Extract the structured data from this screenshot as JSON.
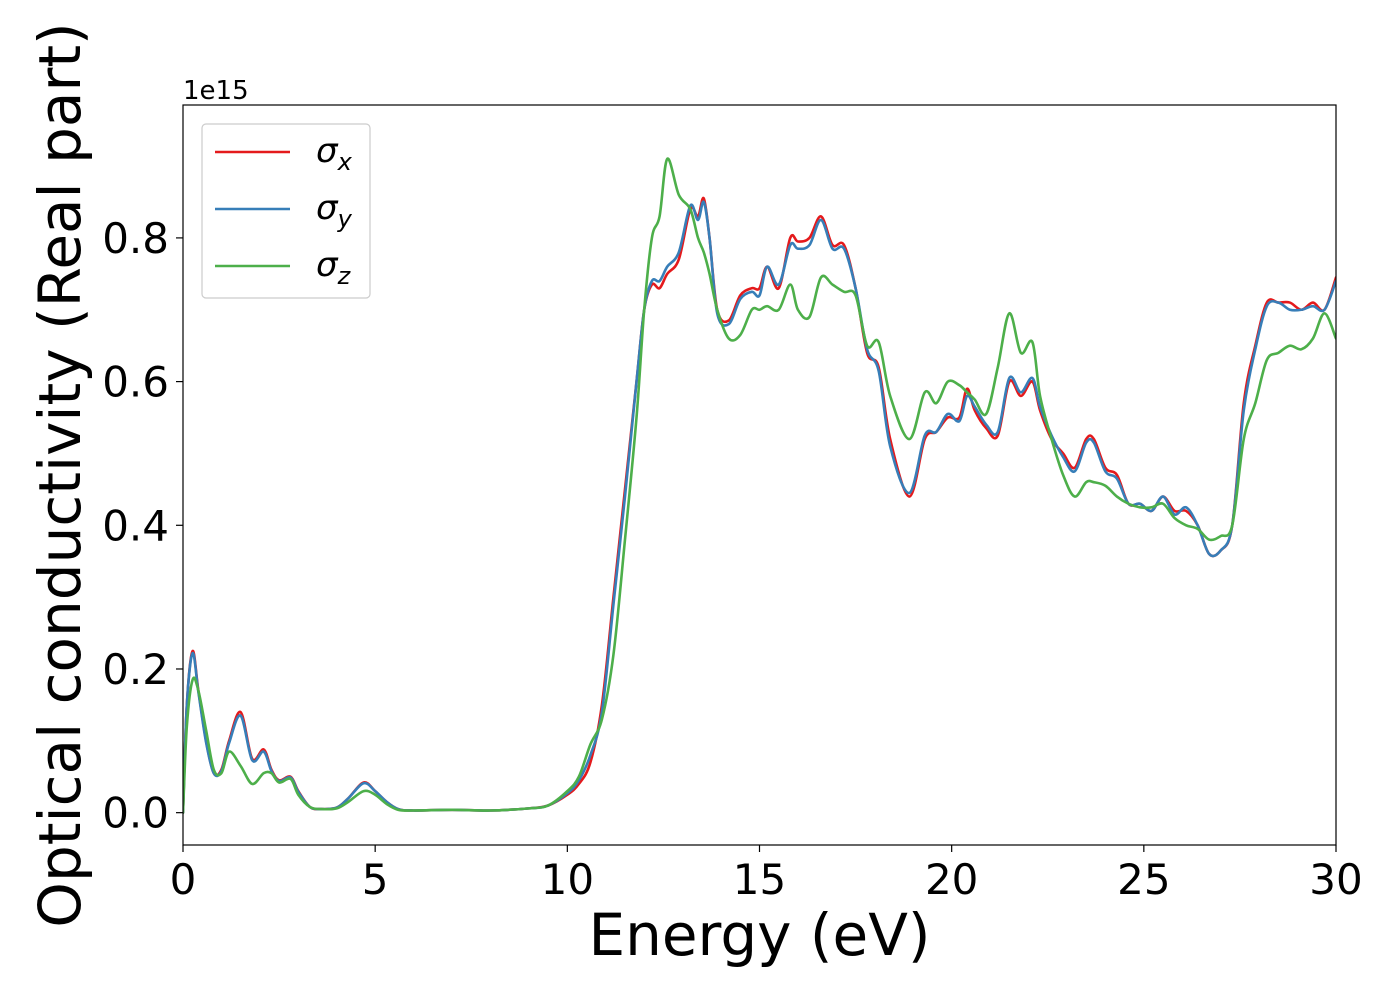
{
  "chart_data": {
    "type": "line",
    "title": "",
    "xlabel": "Energy (eV)",
    "ylabel": "Optical conductivity (Real part)",
    "y_offset_label": "1e15",
    "xlim": [
      0,
      30
    ],
    "ylim": [
      -0.045,
      0.985
    ],
    "x_ticks": [
      0,
      5,
      10,
      15,
      20,
      25,
      30
    ],
    "x_tick_labels": [
      "0",
      "5",
      "10",
      "15",
      "20",
      "25",
      "30"
    ],
    "y_ticks": [
      0.0,
      0.2,
      0.4,
      0.6,
      0.8
    ],
    "y_tick_labels": [
      "0.0",
      "0.2",
      "0.4",
      "0.6",
      "0.8"
    ],
    "grid": false,
    "legend_position": "top-left",
    "series": [
      {
        "name": "σx",
        "label_base": "σ",
        "label_sub": "x",
        "color": "#e41a1c",
        "x": [
          0,
          0.1,
          0.25,
          0.4,
          0.6,
          0.8,
          1.0,
          1.2,
          1.5,
          1.8,
          2.1,
          2.3,
          2.5,
          2.8,
          3.0,
          3.3,
          3.6,
          4.0,
          4.3,
          4.7,
          5.0,
          5.3,
          5.6,
          6.0,
          7.0,
          8.0,
          9.0,
          9.5,
          10.0,
          10.3,
          10.6,
          10.9,
          11.2,
          11.5,
          11.8,
          12.0,
          12.2,
          12.4,
          12.6,
          12.9,
          13.2,
          13.4,
          13.55,
          13.7,
          13.9,
          14.2,
          14.5,
          14.8,
          15.0,
          15.2,
          15.5,
          15.8,
          16.0,
          16.3,
          16.6,
          16.9,
          17.2,
          17.5,
          17.8,
          18.1,
          18.4,
          18.9,
          19.3,
          19.6,
          19.9,
          20.2,
          20.4,
          20.6,
          20.9,
          21.2,
          21.5,
          21.8,
          22.1,
          22.3,
          22.6,
          22.9,
          23.2,
          23.5,
          23.7,
          24.0,
          24.3,
          24.6,
          24.9,
          25.2,
          25.5,
          25.8,
          26.1,
          26.4,
          26.7,
          27.0,
          27.3,
          27.6,
          27.9,
          28.2,
          28.5,
          28.8,
          29.1,
          29.4,
          29.7,
          30.0
        ],
        "y": [
          0.0,
          0.15,
          0.225,
          0.17,
          0.1,
          0.055,
          0.06,
          0.1,
          0.14,
          0.075,
          0.088,
          0.06,
          0.045,
          0.05,
          0.03,
          0.008,
          0.005,
          0.007,
          0.02,
          0.042,
          0.03,
          0.015,
          0.005,
          0.003,
          0.004,
          0.003,
          0.006,
          0.01,
          0.025,
          0.04,
          0.07,
          0.15,
          0.3,
          0.45,
          0.6,
          0.7,
          0.735,
          0.73,
          0.75,
          0.77,
          0.84,
          0.83,
          0.855,
          0.8,
          0.7,
          0.685,
          0.72,
          0.73,
          0.73,
          0.76,
          0.73,
          0.8,
          0.795,
          0.8,
          0.83,
          0.79,
          0.79,
          0.73,
          0.64,
          0.62,
          0.52,
          0.44,
          0.52,
          0.53,
          0.55,
          0.55,
          0.59,
          0.56,
          0.535,
          0.525,
          0.6,
          0.58,
          0.6,
          0.56,
          0.52,
          0.5,
          0.48,
          0.52,
          0.52,
          0.48,
          0.47,
          0.43,
          0.43,
          0.42,
          0.44,
          0.42,
          0.42,
          0.4,
          0.36,
          0.365,
          0.4,
          0.57,
          0.65,
          0.71,
          0.71,
          0.71,
          0.7,
          0.71,
          0.7,
          0.745
        ]
      },
      {
        "name": "σy",
        "label_base": "σ",
        "label_sub": "y",
        "color": "#377eb8",
        "x": [
          0,
          0.1,
          0.25,
          0.4,
          0.6,
          0.8,
          1.0,
          1.2,
          1.5,
          1.8,
          2.1,
          2.3,
          2.5,
          2.8,
          3.0,
          3.3,
          3.6,
          4.0,
          4.3,
          4.7,
          5.0,
          5.3,
          5.6,
          6.0,
          7.0,
          8.0,
          9.0,
          9.5,
          10.0,
          10.3,
          10.6,
          10.9,
          11.2,
          11.5,
          11.8,
          12.0,
          12.2,
          12.4,
          12.6,
          12.9,
          13.2,
          13.4,
          13.55,
          13.7,
          13.9,
          14.2,
          14.5,
          14.8,
          15.0,
          15.2,
          15.5,
          15.8,
          16.0,
          16.3,
          16.6,
          16.9,
          17.2,
          17.5,
          17.8,
          18.1,
          18.4,
          18.9,
          19.3,
          19.6,
          19.9,
          20.2,
          20.4,
          20.6,
          20.9,
          21.2,
          21.5,
          21.8,
          22.1,
          22.3,
          22.6,
          22.9,
          23.2,
          23.5,
          23.7,
          24.0,
          24.3,
          24.6,
          24.9,
          25.2,
          25.5,
          25.8,
          26.1,
          26.4,
          26.7,
          27.0,
          27.3,
          27.6,
          27.9,
          28.2,
          28.5,
          28.8,
          29.1,
          29.4,
          29.7,
          30.0
        ],
        "y": [
          0.0,
          0.15,
          0.222,
          0.168,
          0.098,
          0.055,
          0.058,
          0.097,
          0.135,
          0.073,
          0.085,
          0.058,
          0.044,
          0.049,
          0.029,
          0.008,
          0.005,
          0.007,
          0.02,
          0.041,
          0.03,
          0.015,
          0.005,
          0.003,
          0.004,
          0.003,
          0.006,
          0.01,
          0.027,
          0.045,
          0.08,
          0.14,
          0.29,
          0.44,
          0.6,
          0.7,
          0.74,
          0.74,
          0.76,
          0.78,
          0.845,
          0.825,
          0.85,
          0.8,
          0.695,
          0.68,
          0.715,
          0.725,
          0.72,
          0.76,
          0.735,
          0.79,
          0.785,
          0.79,
          0.825,
          0.785,
          0.785,
          0.73,
          0.645,
          0.615,
          0.51,
          0.445,
          0.525,
          0.53,
          0.555,
          0.545,
          0.58,
          0.565,
          0.54,
          0.53,
          0.605,
          0.585,
          0.605,
          0.565,
          0.525,
          0.495,
          0.475,
          0.515,
          0.515,
          0.475,
          0.465,
          0.43,
          0.43,
          0.42,
          0.44,
          0.415,
          0.425,
          0.4,
          0.36,
          0.365,
          0.4,
          0.56,
          0.645,
          0.705,
          0.71,
          0.7,
          0.7,
          0.705,
          0.7,
          0.74
        ]
      },
      {
        "name": "σz",
        "label_base": "σ",
        "label_sub": "z",
        "color": "#4daf4a",
        "x": [
          0,
          0.1,
          0.25,
          0.4,
          0.6,
          0.8,
          1.0,
          1.2,
          1.5,
          1.8,
          2.1,
          2.3,
          2.5,
          2.8,
          3.0,
          3.3,
          3.6,
          4.0,
          4.3,
          4.7,
          5.0,
          5.3,
          5.6,
          6.0,
          7.0,
          8.0,
          9.0,
          9.5,
          10.0,
          10.3,
          10.6,
          10.9,
          11.2,
          11.5,
          11.8,
          12.0,
          12.2,
          12.4,
          12.6,
          12.9,
          13.2,
          13.4,
          13.55,
          13.7,
          13.9,
          14.2,
          14.5,
          14.8,
          15.0,
          15.2,
          15.5,
          15.8,
          16.0,
          16.3,
          16.6,
          16.9,
          17.2,
          17.5,
          17.8,
          18.1,
          18.4,
          18.9,
          19.3,
          19.6,
          19.9,
          20.2,
          20.4,
          20.6,
          20.9,
          21.2,
          21.5,
          21.8,
          22.1,
          22.3,
          22.6,
          22.9,
          23.2,
          23.5,
          23.7,
          24.0,
          24.3,
          24.6,
          24.9,
          25.2,
          25.5,
          25.8,
          26.1,
          26.4,
          26.7,
          27.0,
          27.3,
          27.6,
          27.9,
          28.2,
          28.5,
          28.8,
          29.1,
          29.4,
          29.7,
          30.0
        ],
        "y": [
          0.0,
          0.12,
          0.185,
          0.17,
          0.115,
          0.06,
          0.055,
          0.085,
          0.065,
          0.04,
          0.055,
          0.055,
          0.042,
          0.047,
          0.025,
          0.008,
          0.005,
          0.006,
          0.015,
          0.03,
          0.025,
          0.012,
          0.004,
          0.003,
          0.004,
          0.003,
          0.006,
          0.01,
          0.03,
          0.05,
          0.095,
          0.13,
          0.22,
          0.38,
          0.55,
          0.7,
          0.8,
          0.83,
          0.91,
          0.86,
          0.84,
          0.8,
          0.78,
          0.75,
          0.7,
          0.66,
          0.665,
          0.7,
          0.7,
          0.705,
          0.7,
          0.735,
          0.7,
          0.69,
          0.745,
          0.735,
          0.725,
          0.72,
          0.65,
          0.655,
          0.58,
          0.52,
          0.585,
          0.57,
          0.6,
          0.595,
          0.585,
          0.575,
          0.555,
          0.62,
          0.695,
          0.64,
          0.655,
          0.58,
          0.52,
          0.47,
          0.44,
          0.46,
          0.46,
          0.455,
          0.44,
          0.43,
          0.425,
          0.425,
          0.43,
          0.41,
          0.4,
          0.395,
          0.38,
          0.385,
          0.4,
          0.52,
          0.57,
          0.63,
          0.64,
          0.65,
          0.645,
          0.66,
          0.695,
          0.66
        ]
      }
    ]
  }
}
